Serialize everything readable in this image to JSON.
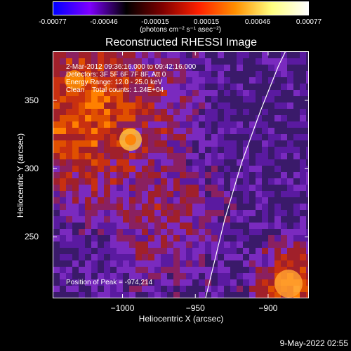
{
  "colorbar": {
    "tick_labels": [
      "-0.00077",
      "-0.00046",
      "-0.00015",
      "0.00015",
      "0.00046",
      "0.00077"
    ],
    "units": "(photons cm⁻² s⁻¹ asec⁻²)",
    "range": [
      -0.00077,
      0.00077
    ],
    "gradient_colors": [
      "#0000ff",
      "#7f00ff",
      "#000000",
      "#7f0000",
      "#ff2000",
      "#ff9000",
      "#ffff80",
      "#ffffff"
    ]
  },
  "title": "Reconstructed RHESSI Image",
  "overlay": {
    "time_range": "2-Mar-2012 09:36:16.000 to 09:42:16.000",
    "detectors": "Detectors: 3F 5F 6F 7F 8F, Att 0",
    "energy": "Energy Range: 12.0 - 25.0 keV",
    "method": "Clean    Total counts: 1.24E+04",
    "peak": "Position of Peak = -974,214"
  },
  "chart_data": {
    "type": "heatmap",
    "title": "Reconstructed RHESSI Image",
    "xlabel": "Heliocentric X (arcsec)",
    "ylabel": "Heliocentric Y (arcsec)",
    "xlim": [
      -1048,
      -872
    ],
    "ylim": [
      205,
      386
    ],
    "x_ticks": [
      -1000,
      -950,
      -900
    ],
    "y_ticks": [
      250,
      300,
      350
    ],
    "x_tick_labels": [
      "−1000",
      "−950",
      "−900"
    ],
    "y_tick_labels": [
      "250",
      "300",
      "350"
    ],
    "limb_curve": [
      [
        -943,
        205
      ],
      [
        -930,
        262
      ],
      [
        -918,
        305
      ],
      [
        -905,
        343
      ],
      [
        -893,
        375
      ],
      [
        -888,
        386
      ]
    ],
    "colormap": [
      "#3a1a6a",
      "#5a1aa0",
      "#7a2abf",
      "#8a2060",
      "#a0202a",
      "#c83010",
      "#e05000",
      "#ff8000",
      "#ffc040"
    ]
  },
  "timestamp": "9-May-2022 02:55"
}
